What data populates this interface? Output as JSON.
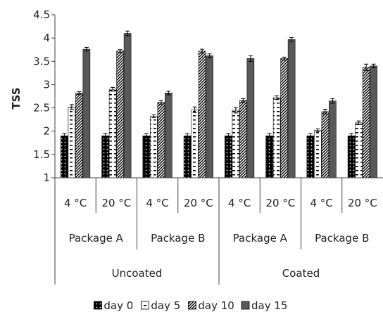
{
  "chart_data": {
    "type": "bar",
    "ylabel": "TSS",
    "ylim": [
      1,
      4.5
    ],
    "yticks": [
      "1",
      "1.5",
      "2",
      "2.5",
      "3",
      "3.5",
      "4",
      "4.5"
    ],
    "temperature_labels": [
      "4 °C",
      "20 °C",
      "4 °C",
      "20 °C",
      "4 °C",
      "20 °C",
      "4 °C",
      "20 °C"
    ],
    "package_labels": [
      "Package A",
      "Package B",
      "Package A",
      "Package B"
    ],
    "coating_labels": [
      "Uncoated",
      "Coated"
    ],
    "legend_position": "bottom",
    "grid": false,
    "series": [
      {
        "name": "day 0",
        "pattern": "dots",
        "values": [
          1.9,
          1.9,
          1.9,
          1.9,
          1.9,
          1.9,
          1.9,
          1.9
        ],
        "errors": [
          0.05,
          0.05,
          0.05,
          0.05,
          0.05,
          0.05,
          0.05,
          0.05
        ]
      },
      {
        "name": "day 5",
        "pattern": "dashes",
        "values": [
          2.52,
          2.9,
          2.32,
          2.46,
          2.45,
          2.72,
          2.02,
          2.18
        ],
        "errors": [
          0.05,
          0.04,
          0.03,
          0.06,
          0.06,
          0.04,
          0.03,
          0.04
        ]
      },
      {
        "name": "day 10",
        "pattern": "diagonal",
        "values": [
          2.82,
          3.72,
          2.62,
          3.72,
          2.66,
          3.56,
          2.42,
          3.37
        ],
        "errors": [
          0.03,
          0.03,
          0.04,
          0.04,
          0.04,
          0.03,
          0.05,
          0.07
        ]
      },
      {
        "name": "day 15",
        "pattern": "solid",
        "values": [
          3.76,
          4.1,
          2.82,
          3.62,
          3.56,
          3.97,
          2.65,
          3.4
        ],
        "errors": [
          0.04,
          0.05,
          0.04,
          0.04,
          0.06,
          0.04,
          0.05,
          0.04
        ]
      }
    ],
    "colors": {
      "axis": "#404040",
      "bar_edge": "#000000",
      "day15_fill": "#595959",
      "text": "#222222"
    }
  }
}
